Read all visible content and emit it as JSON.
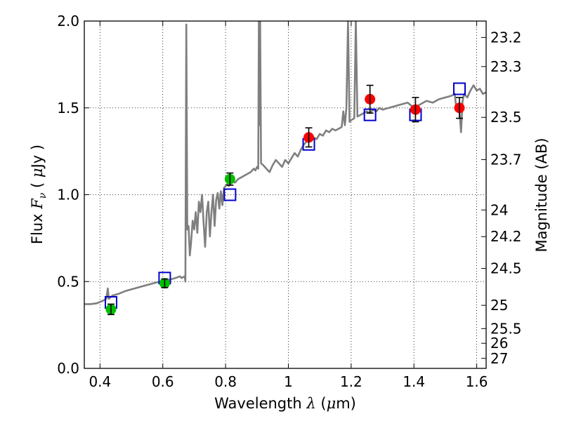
{
  "chart_data": {
    "type": "scatter",
    "xlabel_text": "Wavelength",
    "xlabel_symbol": "λ",
    "xlabel_unit_open": " (",
    "xlabel_unit_mu": "μ",
    "xlabel_unit_close": "m)",
    "ylabel_text": "Flux",
    "ylabel_symbol": "F",
    "ylabel_sub": "ν",
    "ylabel_unit_open": "( ",
    "ylabel_unit_mu": "μ",
    "ylabel_unit_close": "Jy )",
    "y2label": "Magnitude (AB)",
    "xlim": [
      0.35,
      1.63
    ],
    "ylim": [
      0.0,
      2.0
    ],
    "grid": true,
    "x_ticks": [
      {
        "value": 0.4,
        "label": "0.4"
      },
      {
        "value": 0.6,
        "label": "0.6"
      },
      {
        "value": 0.8,
        "label": "0.8"
      },
      {
        "value": 1.0,
        "label": "1"
      },
      {
        "value": 1.2,
        "label": "1.2"
      },
      {
        "value": 1.4,
        "label": "1.4"
      },
      {
        "value": 1.6,
        "label": "1.6"
      }
    ],
    "y_ticks": [
      {
        "value": 0.0,
        "label": "0.0"
      },
      {
        "value": 0.5,
        "label": "0.5"
      },
      {
        "value": 1.0,
        "label": "1.0"
      },
      {
        "value": 1.5,
        "label": "1.5"
      },
      {
        "value": 2.0,
        "label": "2.0"
      }
    ],
    "mag_ticks": [
      {
        "value": 23.2,
        "label": "23.2"
      },
      {
        "value": 23.3,
        "label": "23.3"
      },
      {
        "value": 23.5,
        "label": "23.5"
      },
      {
        "value": 23.7,
        "label": "23.7"
      },
      {
        "value": 24.0,
        "label": "24"
      },
      {
        "value": 24.2,
        "label": "24.2"
      },
      {
        "value": 24.5,
        "label": "24.5"
      },
      {
        "value": 25.0,
        "label": "25"
      },
      {
        "value": 25.5,
        "label": "25.5"
      },
      {
        "value": 26.0,
        "label": "26"
      },
      {
        "value": 27.0,
        "label": "27"
      }
    ],
    "colors": {
      "spectrum": "#7f7f7f",
      "green": "#00bf00",
      "red": "#ff0000",
      "model": "#0000cc",
      "grid": "#000000"
    },
    "spectrum": [
      [
        0.35,
        0.37
      ],
      [
        0.37,
        0.37
      ],
      [
        0.39,
        0.375
      ],
      [
        0.41,
        0.39
      ],
      [
        0.42,
        0.4
      ],
      [
        0.425,
        0.46
      ],
      [
        0.428,
        0.4
      ],
      [
        0.44,
        0.42
      ],
      [
        0.46,
        0.43
      ],
      [
        0.48,
        0.445
      ],
      [
        0.5,
        0.455
      ],
      [
        0.52,
        0.465
      ],
      [
        0.54,
        0.475
      ],
      [
        0.56,
        0.485
      ],
      [
        0.58,
        0.495
      ],
      [
        0.6,
        0.5
      ],
      [
        0.62,
        0.51
      ],
      [
        0.64,
        0.52
      ],
      [
        0.655,
        0.53
      ],
      [
        0.66,
        0.52
      ],
      [
        0.67,
        0.53
      ],
      [
        0.672,
        0.5
      ],
      [
        0.675,
        1.98
      ],
      [
        0.678,
        0.8
      ],
      [
        0.682,
        0.82
      ],
      [
        0.686,
        0.65
      ],
      [
        0.69,
        0.72
      ],
      [
        0.695,
        0.85
      ],
      [
        0.7,
        0.8
      ],
      [
        0.705,
        0.9
      ],
      [
        0.71,
        0.78
      ],
      [
        0.715,
        0.96
      ],
      [
        0.72,
        0.9
      ],
      [
        0.725,
        1.0
      ],
      [
        0.73,
        0.84
      ],
      [
        0.735,
        0.7
      ],
      [
        0.74,
        0.9
      ],
      [
        0.745,
        0.96
      ],
      [
        0.75,
        0.76
      ],
      [
        0.755,
        0.9
      ],
      [
        0.76,
        1.0
      ],
      [
        0.765,
        0.82
      ],
      [
        0.77,
        0.97
      ],
      [
        0.775,
        1.01
      ],
      [
        0.78,
        0.92
      ],
      [
        0.785,
        1.02
      ],
      [
        0.79,
        0.94
      ],
      [
        0.795,
        1.04
      ],
      [
        0.8,
        1.05
      ],
      [
        0.805,
        1.06
      ],
      [
        0.81,
        1.05
      ],
      [
        0.815,
        1.06
      ],
      [
        0.82,
        1.08
      ],
      [
        0.83,
        1.07
      ],
      [
        0.84,
        1.09
      ],
      [
        0.85,
        1.1
      ],
      [
        0.86,
        1.11
      ],
      [
        0.87,
        1.12
      ],
      [
        0.88,
        1.13
      ],
      [
        0.89,
        1.15
      ],
      [
        0.895,
        1.14
      ],
      [
        0.9,
        1.16
      ],
      [
        0.904,
        1.15
      ],
      [
        0.906,
        2.0
      ],
      [
        0.908,
        1.4
      ],
      [
        0.91,
        2.0
      ],
      [
        0.913,
        1.18
      ],
      [
        0.92,
        1.17
      ],
      [
        0.93,
        1.15
      ],
      [
        0.94,
        1.13
      ],
      [
        0.95,
        1.17
      ],
      [
        0.96,
        1.2
      ],
      [
        0.97,
        1.18
      ],
      [
        0.98,
        1.16
      ],
      [
        0.99,
        1.2
      ],
      [
        1.0,
        1.18
      ],
      [
        1.01,
        1.21
      ],
      [
        1.02,
        1.24
      ],
      [
        1.03,
        1.22
      ],
      [
        1.04,
        1.26
      ],
      [
        1.05,
        1.29
      ],
      [
        1.06,
        1.31
      ],
      [
        1.07,
        1.34
      ],
      [
        1.08,
        1.33
      ],
      [
        1.09,
        1.32
      ],
      [
        1.1,
        1.35
      ],
      [
        1.11,
        1.34
      ],
      [
        1.12,
        1.37
      ],
      [
        1.13,
        1.36
      ],
      [
        1.14,
        1.38
      ],
      [
        1.15,
        1.37
      ],
      [
        1.16,
        1.38
      ],
      [
        1.17,
        1.39
      ],
      [
        1.175,
        1.48
      ],
      [
        1.18,
        1.4
      ],
      [
        1.185,
        1.5
      ],
      [
        1.19,
        2.0
      ],
      [
        1.195,
        1.42
      ],
      [
        1.2,
        1.43
      ],
      [
        1.21,
        1.44
      ],
      [
        1.215,
        2.0
      ],
      [
        1.22,
        1.45
      ],
      [
        1.23,
        1.46
      ],
      [
        1.24,
        1.47
      ],
      [
        1.25,
        1.48
      ],
      [
        1.26,
        1.47
      ],
      [
        1.27,
        1.49
      ],
      [
        1.28,
        1.48
      ],
      [
        1.29,
        1.5
      ],
      [
        1.3,
        1.49
      ],
      [
        1.32,
        1.5
      ],
      [
        1.34,
        1.51
      ],
      [
        1.36,
        1.52
      ],
      [
        1.38,
        1.53
      ],
      [
        1.4,
        1.5
      ],
      [
        1.42,
        1.52
      ],
      [
        1.44,
        1.54
      ],
      [
        1.46,
        1.53
      ],
      [
        1.48,
        1.55
      ],
      [
        1.5,
        1.56
      ],
      [
        1.52,
        1.57
      ],
      [
        1.53,
        1.58
      ],
      [
        1.535,
        1.5
      ],
      [
        1.54,
        1.52
      ],
      [
        1.545,
        1.48
      ],
      [
        1.55,
        1.36
      ],
      [
        1.555,
        1.54
      ],
      [
        1.56,
        1.58
      ],
      [
        1.57,
        1.56
      ],
      [
        1.58,
        1.6
      ],
      [
        1.59,
        1.63
      ],
      [
        1.6,
        1.6
      ],
      [
        1.61,
        1.61
      ],
      [
        1.62,
        1.58
      ],
      [
        1.63,
        1.59
      ]
    ],
    "green_points": [
      {
        "x": 0.435,
        "y": 0.34,
        "err": 0.03
      },
      {
        "x": 0.606,
        "y": 0.49,
        "err": 0.025
      },
      {
        "x": 0.814,
        "y": 1.09,
        "err": 0.035
      }
    ],
    "red_points": [
      {
        "x": 1.065,
        "y": 1.33,
        "err": 0.055
      },
      {
        "x": 1.26,
        "y": 1.55,
        "err": 0.08
      },
      {
        "x": 1.405,
        "y": 1.49,
        "err": 0.07
      },
      {
        "x": 1.545,
        "y": 1.5,
        "err": 0.06
      }
    ],
    "model_points": [
      {
        "x": 0.435,
        "y": 0.38
      },
      {
        "x": 0.606,
        "y": 0.52
      },
      {
        "x": 0.814,
        "y": 1.0
      },
      {
        "x": 1.065,
        "y": 1.29
      },
      {
        "x": 1.26,
        "y": 1.46
      },
      {
        "x": 1.405,
        "y": 1.46
      },
      {
        "x": 1.545,
        "y": 1.61
      }
    ]
  }
}
